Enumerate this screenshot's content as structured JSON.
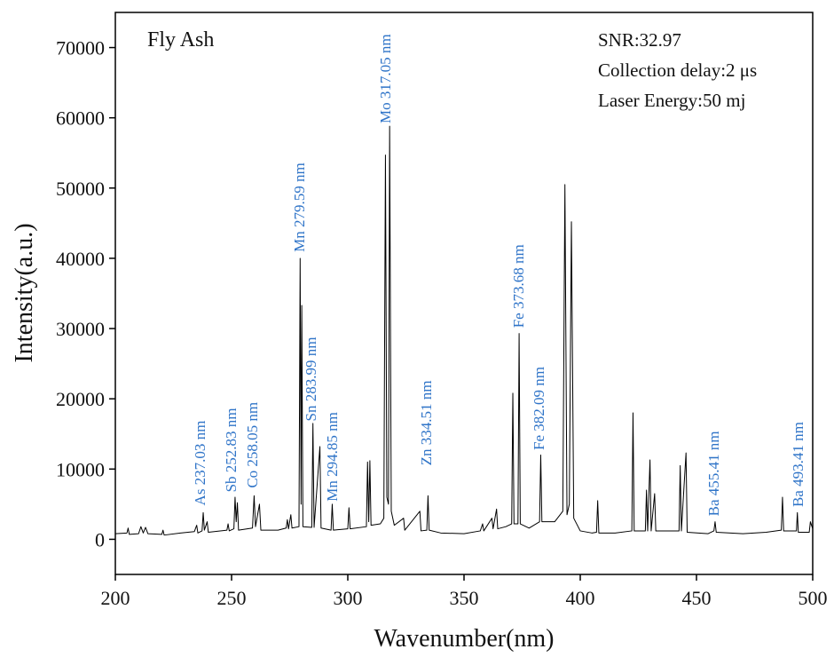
{
  "chart_data": {
    "type": "line",
    "label": "Fly Ash",
    "info": [
      "SNR:32.97",
      "Collection delay:2 μs",
      "Laser Energy:50 mj"
    ],
    "xlabel": "Wavenumber(nm)",
    "ylabel": "Intensity(a.u.)",
    "xlim": [
      200,
      500
    ],
    "xticks": [
      200,
      250,
      300,
      350,
      400,
      450,
      500
    ],
    "ylim": [
      -5000,
      75000
    ],
    "yticks": [
      0,
      10000,
      20000,
      30000,
      40000,
      50000,
      60000,
      70000
    ],
    "series": [
      {
        "color": "#000000",
        "x": [
          200,
          205,
          205.5,
          206,
          210,
          211,
          212,
          213,
          214,
          220,
          220.5,
          221,
          228,
          234,
          235,
          235.5,
          237.3,
          237.8,
          238.3,
          239.5,
          240,
          248,
          248.5,
          249,
          251,
          251.5,
          252,
          252.5,
          253,
          259,
          259.7,
          260.3,
          262,
          262.6,
          270,
          273.5,
          274,
          274.5,
          275.5,
          276,
          279,
          279.5,
          279.9,
          280.2,
          280.7,
          284.5,
          285,
          285.5,
          288,
          288.5,
          292.8,
          293.3,
          293.8,
          300,
          300.5,
          301,
          308,
          308.5,
          309,
          309.5,
          310,
          314,
          315.5,
          316.2,
          316.8,
          317.5,
          318,
          318.7,
          320,
          324,
          324.5,
          331,
          331.5,
          334,
          334.5,
          335,
          340,
          350,
          357,
          358,
          358.5,
          362,
          362.5,
          364,
          364.5,
          368,
          370.5,
          371,
          371.5,
          373.2,
          373.7,
          374.2,
          378,
          382.5,
          383,
          383.5,
          389,
          392.5,
          393.4,
          394.3,
          395.3,
          396.2,
          397.2,
          400,
          405,
          407,
          407.5,
          408,
          415,
          422.2,
          422.7,
          423.2,
          428,
          428.5,
          429,
          430,
          430.5,
          432,
          432.5,
          442.5,
          443,
          443.5,
          445.5,
          446,
          455,
          457.5,
          458,
          458.5,
          470,
          480,
          486.5,
          487,
          487.5,
          493,
          493.4,
          493.8,
          498.5,
          499,
          500
        ],
        "values": [
          800,
          900,
          1600,
          700,
          800,
          1800,
          900,
          1700,
          800,
          700,
          1300,
          600,
          900,
          1100,
          2000,
          900,
          1200,
          3800,
          1300,
          2500,
          1000,
          1300,
          2200,
          1200,
          1500,
          6000,
          2500,
          5200,
          1300,
          1600,
          6200,
          1800,
          5000,
          1300,
          1300,
          1600,
          2800,
          1500,
          3500,
          1600,
          1800,
          40000,
          5000,
          33300,
          1800,
          1700,
          16500,
          1700,
          13200,
          1600,
          1300,
          5000,
          1300,
          1500,
          4500,
          1500,
          1800,
          11000,
          2500,
          11200,
          2000,
          2200,
          3000,
          54700,
          6000,
          5000,
          58800,
          4000,
          2000,
          3000,
          1300,
          4000,
          1200,
          1300,
          6200,
          1300,
          900,
          800,
          1200,
          2200,
          1200,
          3000,
          1500,
          4300,
          1500,
          1800,
          2200,
          20800,
          2200,
          2200,
          29300,
          2200,
          1600,
          2500,
          12000,
          2500,
          2500,
          4000,
          50500,
          3500,
          5000,
          45200,
          3000,
          1200,
          900,
          1000,
          5500,
          900,
          900,
          1200,
          18000,
          1200,
          1200,
          7000,
          1200,
          11300,
          1200,
          6500,
          1200,
          1200,
          10500,
          1200,
          12300,
          1000,
          800,
          1200,
          2500,
          1000,
          800,
          1000,
          1300,
          6000,
          1200,
          1200,
          3800,
          1000,
          1000,
          2500,
          1500
        ]
      }
    ],
    "annotation_color": "#2f74c8",
    "annotations": [
      {
        "text": "As 237.03 nm",
        "x": 238.5,
        "y": 4800
      },
      {
        "text": "Sb 252.83 nm",
        "x": 251.9,
        "y": 6700
      },
      {
        "text": "Co 258.05 nm",
        "x": 261,
        "y": 7300
      },
      {
        "text": "Mn 279.59 nm",
        "x": 281.3,
        "y": 40900
      },
      {
        "text": "Sn 283.99 nm",
        "x": 286.3,
        "y": 16800
      },
      {
        "text": "Mn 294.85 nm",
        "x": 295.4,
        "y": 5400
      },
      {
        "text": "Mo 317.05 nm",
        "x": 318.3,
        "y": 59200
      },
      {
        "text": "Zn 334.51 nm",
        "x": 335.9,
        "y": 10500
      },
      {
        "text": "Fe 373.68 nm",
        "x": 375.6,
        "y": 30100
      },
      {
        "text": "Fe 382.09 nm",
        "x": 384.4,
        "y": 12700
      },
      {
        "text": "Ba 455.41 nm",
        "x": 459.5,
        "y": 3300
      },
      {
        "text": "Ba 493.41 nm",
        "x": 495.8,
        "y": 4600
      }
    ]
  }
}
